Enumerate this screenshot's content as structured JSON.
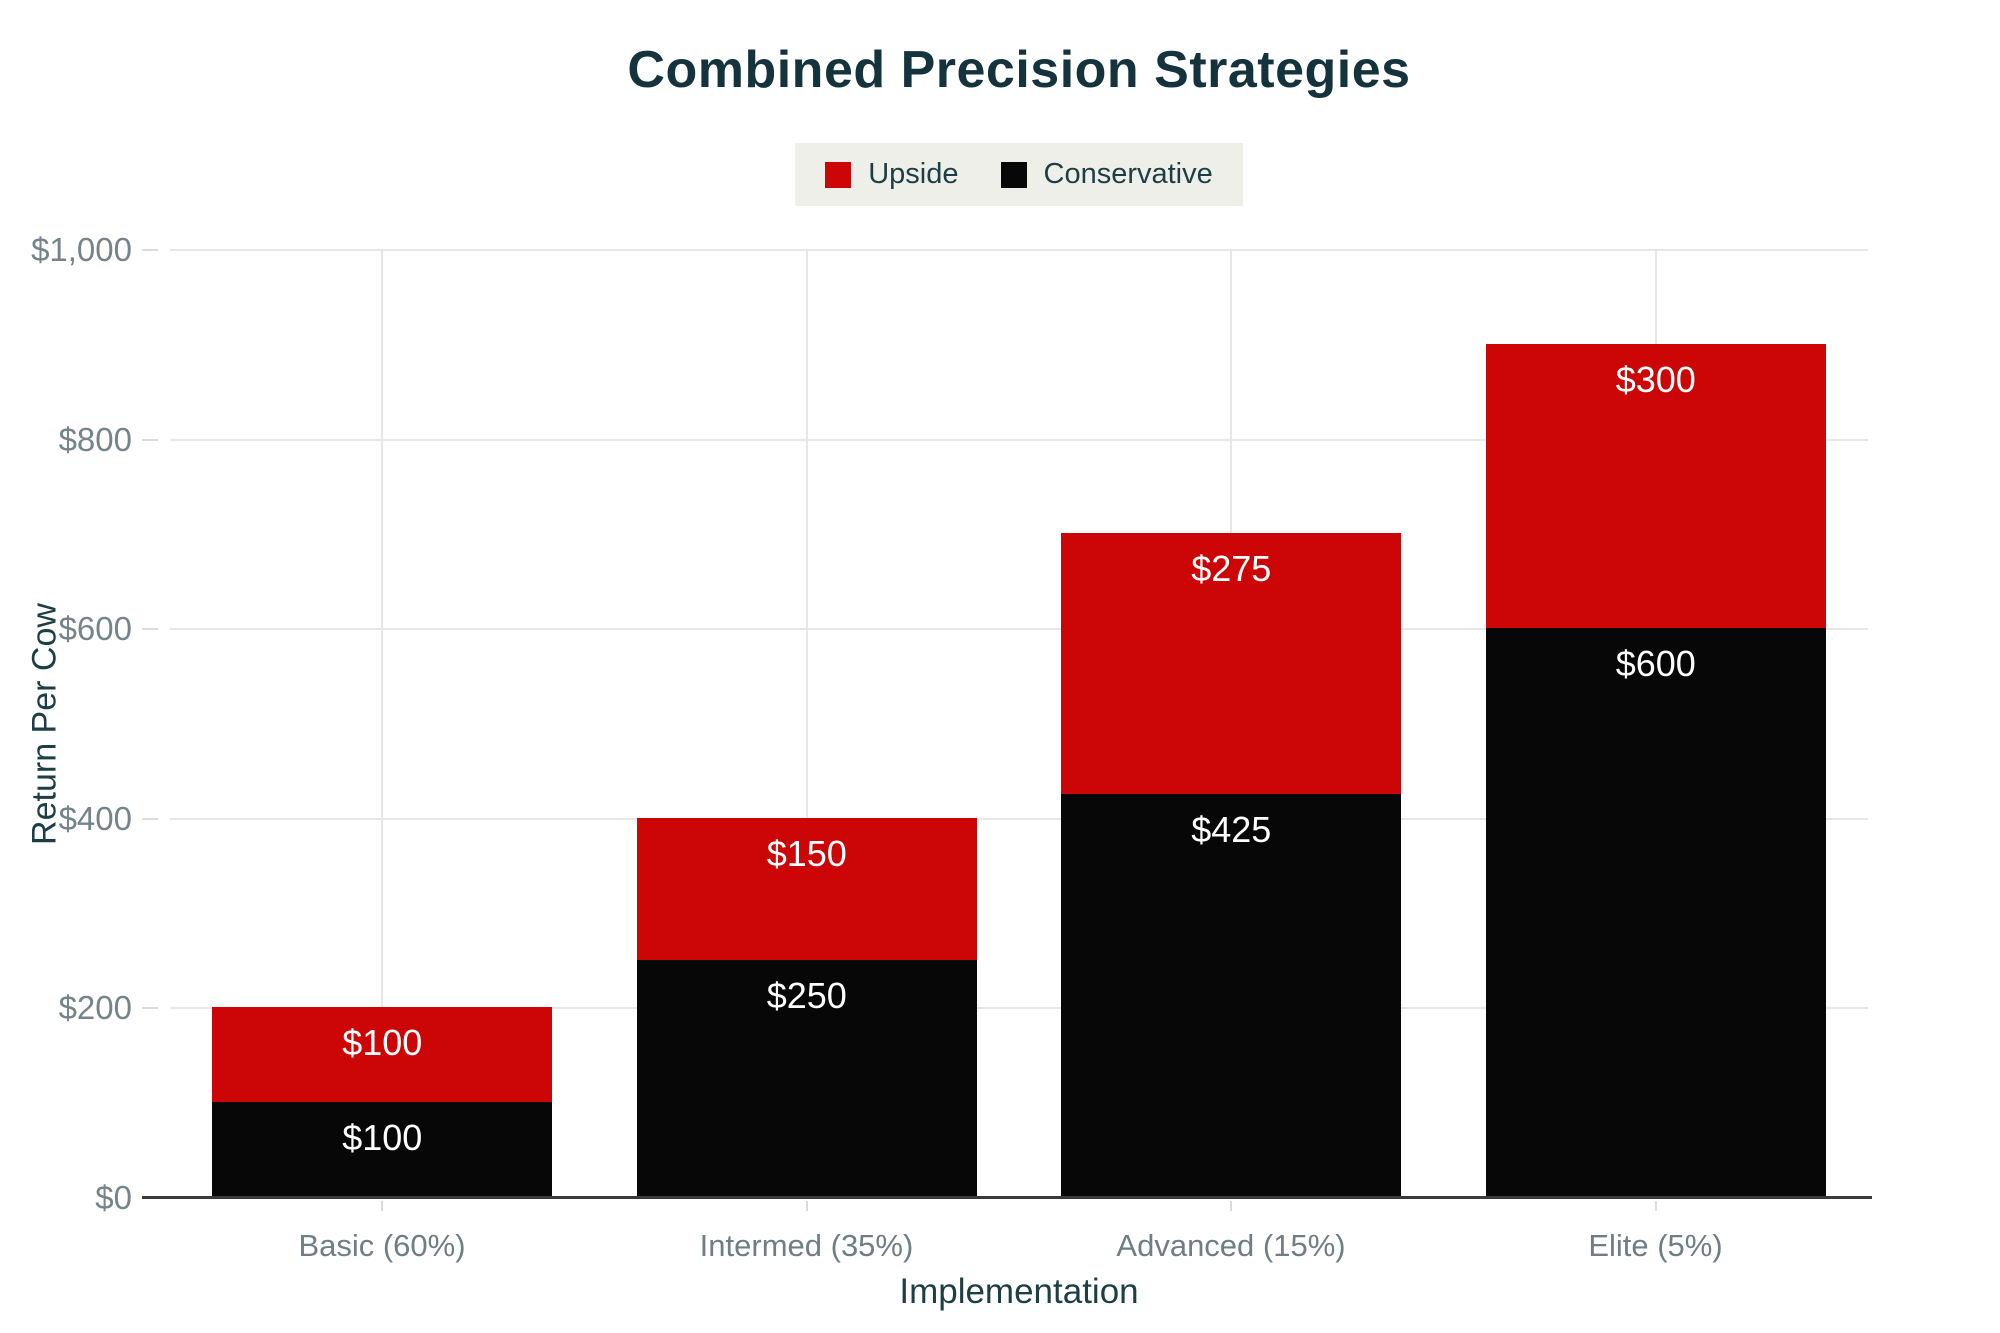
{
  "title": "Combined Precision Strategies",
  "legend": {
    "items": [
      {
        "label": "Upside",
        "color": "#cc0606"
      },
      {
        "label": "Conservative",
        "color": "#070707"
      }
    ]
  },
  "chart_data": {
    "type": "bar",
    "stacked": true,
    "title": "Combined Precision Strategies",
    "xlabel": "Implementation",
    "ylabel": "Return Per Cow",
    "categories": [
      "Basic (60%)",
      "Intermed (35%)",
      "Advanced (15%)",
      "Elite (5%)"
    ],
    "series": [
      {
        "name": "Conservative",
        "color": "#070707",
        "values": [
          100,
          250,
          425,
          600
        ],
        "labels": [
          "$100",
          "$250",
          "$425",
          "$600"
        ]
      },
      {
        "name": "Upside",
        "color": "#cc0606",
        "values": [
          100,
          150,
          275,
          300
        ],
        "labels": [
          "$100",
          "$150",
          "$275",
          "$300"
        ]
      }
    ],
    "totals": [
      200,
      400,
      700,
      900
    ],
    "ylim": [
      0,
      1000
    ],
    "yticks": [
      {
        "value": 0,
        "label": "$0"
      },
      {
        "value": 200,
        "label": "$200"
      },
      {
        "value": 400,
        "label": "$400"
      },
      {
        "value": 600,
        "label": "$600"
      },
      {
        "value": 800,
        "label": "$800"
      },
      {
        "value": 1000,
        "label": "$1,000"
      }
    ],
    "grid": true,
    "legend_position": "top",
    "value_label_color": "#ffffff",
    "axis_line_color": "#3a3a3a",
    "gridline_color": "#e7e7e7"
  }
}
